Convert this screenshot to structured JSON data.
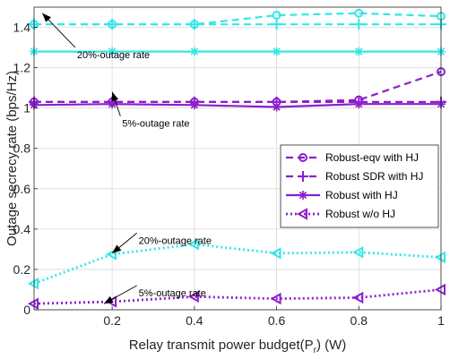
{
  "chart_data": {
    "type": "line",
    "title": "",
    "xlabel": "Relay transmit power budget(P_r) (W)",
    "xlabel_main": "Relay transmit power budget(P",
    "xlabel_sub": "r",
    "xlabel_tail": ") (W)",
    "ylabel": "Outage secrecy rate (bps/Hz)",
    "xlim": [
      0.01,
      1.0
    ],
    "ylim": [
      0,
      1.5
    ],
    "xticks": [
      0.2,
      0.4,
      0.6,
      0.8,
      1
    ],
    "xtick_labels": [
      "0.2",
      "0.4",
      "0.6",
      "0.8",
      "1"
    ],
    "yticks": [
      0,
      0.2,
      0.4,
      0.6,
      0.8,
      1,
      1.2,
      1.4
    ],
    "ytick_labels": [
      "0",
      "0.2",
      "0.4",
      "0.6",
      "0.8",
      "1",
      "1.2",
      "1.4"
    ],
    "grid": true,
    "legend_position": "center-right",
    "x": [
      0.01,
      0.2,
      0.4,
      0.6,
      0.8,
      1.0
    ],
    "series": [
      {
        "name": "Robust-eqv with HJ",
        "group": "20%",
        "style": "dashed",
        "marker": "circle",
        "color": "#33e6e6",
        "values": [
          1.415,
          1.415,
          1.415,
          1.46,
          1.47,
          1.455
        ]
      },
      {
        "name": "Robust SDR with HJ",
        "group": "20%",
        "style": "dashed",
        "marker": "plus",
        "color": "#33e6e6",
        "values": [
          1.415,
          1.415,
          1.415,
          1.415,
          1.415,
          1.415
        ]
      },
      {
        "name": "Robust with HJ",
        "group": "20%",
        "style": "solid",
        "marker": "asterisk",
        "color": "#33e6e6",
        "values": [
          1.28,
          1.28,
          1.28,
          1.28,
          1.28,
          1.28
        ]
      },
      {
        "name": "Robust-eqv with HJ",
        "group": "5%",
        "style": "dashed",
        "marker": "circle",
        "color": "#8c1fcc",
        "values": [
          1.03,
          1.03,
          1.03,
          1.03,
          1.04,
          1.18
        ]
      },
      {
        "name": "Robust SDR with HJ",
        "group": "5%",
        "style": "dashed",
        "marker": "plus",
        "color": "#8c1fcc",
        "values": [
          1.03,
          1.03,
          1.03,
          1.03,
          1.03,
          1.03
        ]
      },
      {
        "name": "Robust with HJ",
        "group": "5%",
        "style": "solid",
        "marker": "asterisk",
        "color": "#8c1fcc",
        "values": [
          1.015,
          1.02,
          1.015,
          1.005,
          1.02,
          1.02
        ]
      },
      {
        "name": "Robust w/o HJ",
        "group": "20%",
        "style": "dotted",
        "marker": "triangle-left",
        "color": "#33e6e6",
        "values": [
          0.13,
          0.275,
          0.325,
          0.28,
          0.285,
          0.26
        ]
      },
      {
        "name": "Robust w/o HJ",
        "group": "5%",
        "style": "dotted",
        "marker": "triangle-left",
        "color": "#8c1fcc",
        "values": [
          0.03,
          0.04,
          0.065,
          0.055,
          0.06,
          0.1
        ]
      }
    ],
    "legend": [
      {
        "label": "Robust-eqv with HJ",
        "style": "dashed",
        "marker": "circle",
        "color": "#8c1fcc"
      },
      {
        "label": "Robust SDR with HJ",
        "style": "dashed",
        "marker": "plus",
        "color": "#8c1fcc"
      },
      {
        "label": "Robust with HJ",
        "style": "solid",
        "marker": "asterisk",
        "color": "#8c1fcc"
      },
      {
        "label": "Robust w/o HJ",
        "style": "dotted",
        "marker": "triangle-left",
        "color": "#8c1fcc"
      }
    ],
    "annotations": [
      {
        "text": "20%-outage rate",
        "tip": [
          0.03,
          1.47
        ],
        "at": [
          0.11,
          1.3
        ]
      },
      {
        "text": "5%-outage rate",
        "tip": [
          0.2,
          1.08
        ],
        "at": [
          0.22,
          0.96
        ]
      },
      {
        "text": "20%-outage rate",
        "tip": [
          0.2,
          0.28
        ],
        "at": [
          0.26,
          0.38
        ]
      },
      {
        "text": "5%-outage rate",
        "tip": [
          0.18,
          0.03
        ],
        "at": [
          0.26,
          0.12
        ]
      }
    ]
  }
}
